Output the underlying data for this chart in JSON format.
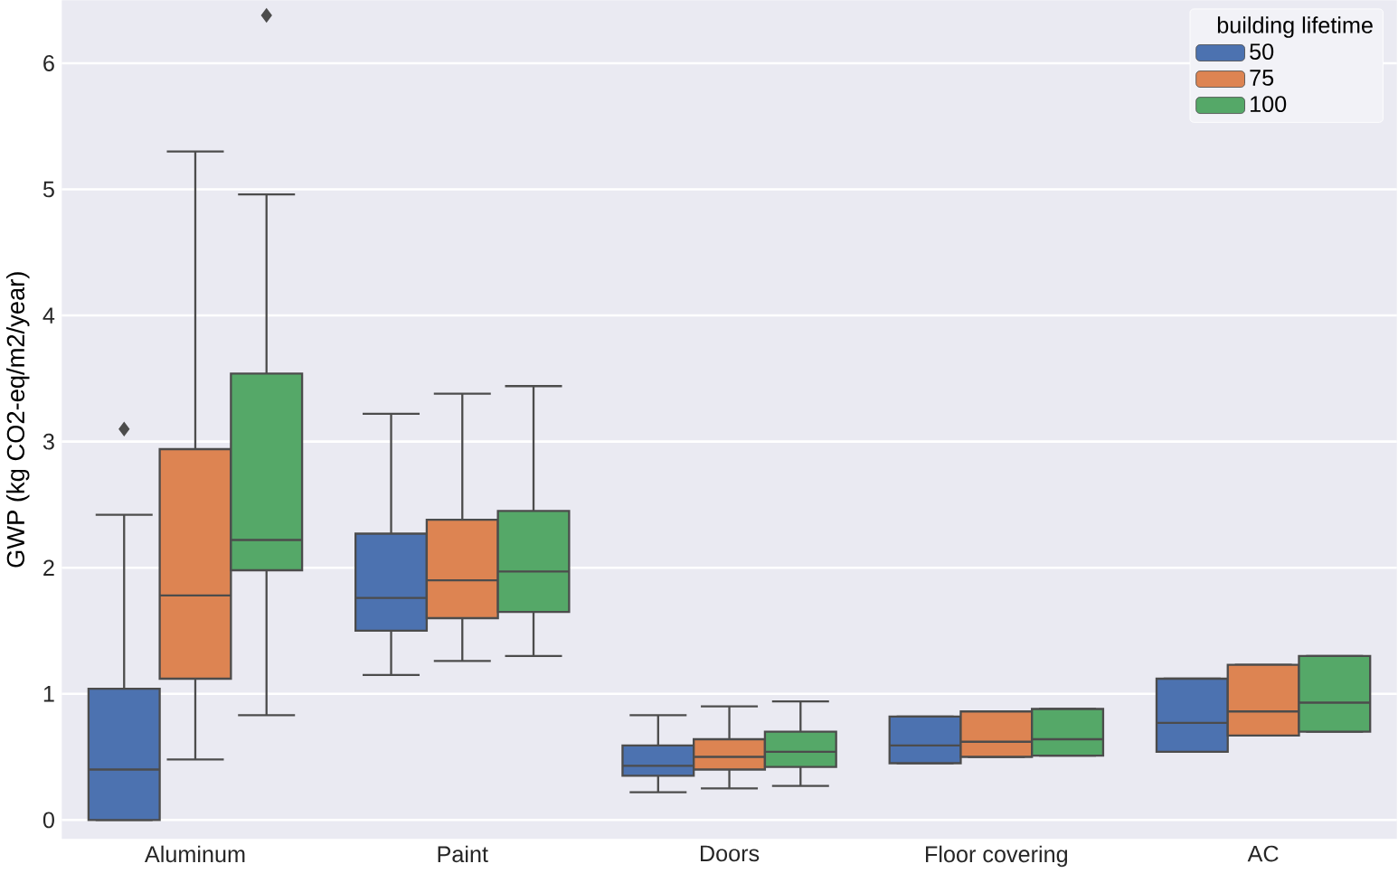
{
  "chart_data": {
    "type": "box",
    "ylabel": "GWP (kg CO2-eq/m2/year)",
    "legend_title": "building lifetime",
    "legend": "top right",
    "grid": "y",
    "categories": [
      "Aluminum",
      "Paint",
      "Doors",
      "Floor covering",
      "AC"
    ],
    "ylim": [
      -0.15,
      6.5
    ],
    "yticks": [
      0,
      1,
      2,
      3,
      4,
      5,
      6
    ],
    "series": [
      {
        "name": "50",
        "color": "#4c72b0",
        "boxes": [
          {
            "low": 0,
            "q1": 0,
            "median": 0.4,
            "q3": 1.04,
            "high": 2.42,
            "outliers": [
              3.1
            ]
          },
          {
            "low": 1.15,
            "q1": 1.5,
            "median": 1.76,
            "q3": 2.27,
            "high": 3.22
          },
          {
            "low": 0.22,
            "q1": 0.35,
            "median": 0.43,
            "q3": 0.59,
            "high": 0.83
          },
          {
            "low": 0.45,
            "q1": 0.45,
            "median": 0.59,
            "q3": 0.82,
            "high": 0.82
          },
          {
            "low": 0.54,
            "q1": 0.54,
            "median": 0.77,
            "q3": 1.12,
            "high": 1.12
          }
        ]
      },
      {
        "name": "75",
        "color": "#dd8452",
        "boxes": [
          {
            "low": 0.48,
            "q1": 1.12,
            "median": 1.78,
            "q3": 2.94,
            "high": 5.3
          },
          {
            "low": 1.26,
            "q1": 1.6,
            "median": 1.9,
            "q3": 2.38,
            "high": 3.38
          },
          {
            "low": 0.25,
            "q1": 0.4,
            "median": 0.5,
            "q3": 0.64,
            "high": 0.9
          },
          {
            "low": 0.5,
            "q1": 0.5,
            "median": 0.62,
            "q3": 0.86,
            "high": 0.86
          },
          {
            "low": 0.67,
            "q1": 0.67,
            "median": 0.86,
            "q3": 1.23,
            "high": 1.23
          }
        ]
      },
      {
        "name": "100",
        "color": "#55a868",
        "boxes": [
          {
            "low": 0.83,
            "q1": 1.98,
            "median": 2.22,
            "q3": 3.54,
            "high": 4.96,
            "outliers": [
              6.38
            ]
          },
          {
            "low": 1.3,
            "q1": 1.65,
            "median": 1.97,
            "q3": 2.45,
            "high": 3.44
          },
          {
            "low": 0.27,
            "q1": 0.42,
            "median": 0.54,
            "q3": 0.7,
            "high": 0.94
          },
          {
            "low": 0.51,
            "q1": 0.51,
            "median": 0.64,
            "q3": 0.88,
            "high": 0.88
          },
          {
            "low": 0.7,
            "q1": 0.7,
            "median": 0.93,
            "q3": 1.3,
            "high": 1.3
          }
        ]
      }
    ]
  }
}
